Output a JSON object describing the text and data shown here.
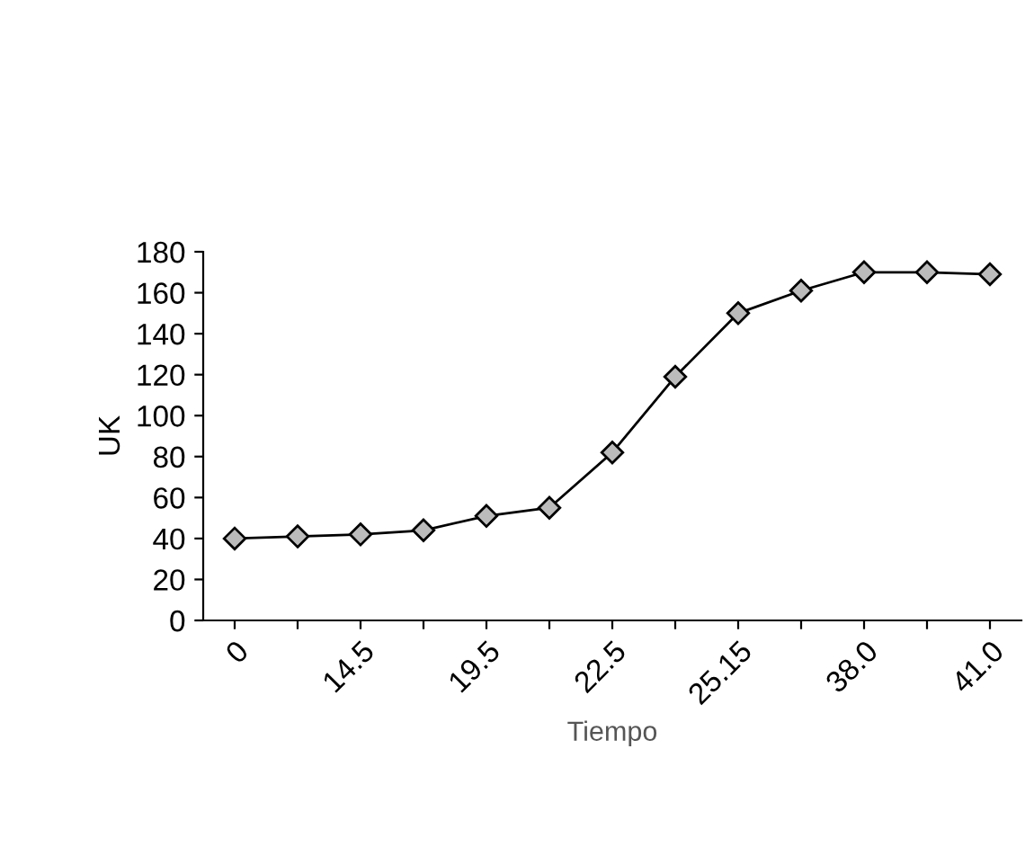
{
  "chart_data": {
    "type": "line",
    "xlabel": "Tiempo",
    "ylabel": "UK",
    "categories": [
      "0",
      null,
      "14.5",
      null,
      "19.5",
      null,
      "22.5",
      null,
      "25.15",
      null,
      "38.0",
      null,
      "41.0"
    ],
    "series": [
      {
        "color": "#000000",
        "values": [
          40,
          41,
          42,
          44,
          51,
          55,
          82,
          119,
          150,
          161,
          170,
          170,
          169
        ]
      }
    ],
    "ylim": [
      0,
      180
    ],
    "yticks": [
      0,
      20,
      40,
      60,
      80,
      100,
      120,
      140,
      160,
      180
    ],
    "grid": false,
    "marker": "diamond",
    "line_style": "solid"
  }
}
